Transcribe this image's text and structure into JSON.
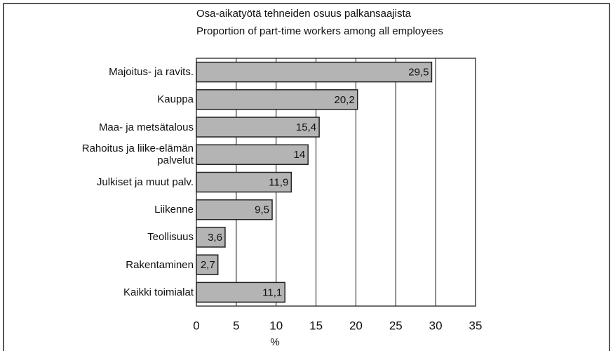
{
  "chart_data": {
    "type": "hbar",
    "title": "Osa-aikatyötä tehneiden osuus palkansaajista",
    "subtitle": "Proportion of part-time workers among all employees",
    "categories": [
      "Majoitus- ja ravits.",
      "Kauppa",
      "Maa- ja metsätalous",
      "Rahoitus ja liike-elämän palvelut",
      "Julkiset ja muut palv.",
      "Liikenne",
      "Teollisuus",
      "Rakentaminen",
      "Kaikki toimialat"
    ],
    "values": [
      29.5,
      20.2,
      15.4,
      14,
      11.9,
      9.5,
      3.6,
      2.7,
      11.1
    ],
    "value_labels": [
      "29,5",
      "20,2",
      "15,4",
      "14",
      "11,9",
      "9,5",
      "3,6",
      "2,7",
      "11,1"
    ],
    "color": "#b4b4b4",
    "xlim": [
      0,
      35
    ],
    "xticks": [
      0,
      5,
      10,
      15,
      20,
      25,
      30,
      35
    ],
    "xlabel": "%",
    "grid": true
  }
}
